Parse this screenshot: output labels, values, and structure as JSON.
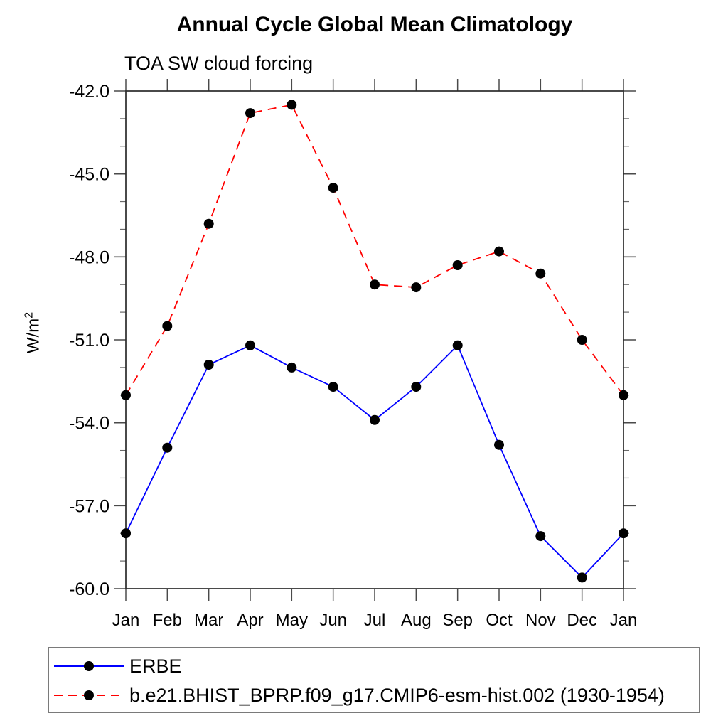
{
  "title": "Annual Cycle Global Mean Climatology",
  "subtitle": "TOA SW cloud forcing",
  "y_axis_label": {
    "base": "W/m",
    "superscript": "2"
  },
  "colors": {
    "background": "#ffffff",
    "axis": "#2b2b2b",
    "major_tick": "#4a4a4a",
    "minor_tick": "#6a6a6a",
    "text": "#000000",
    "marker": "#000000",
    "legend_border": "#7a7a7a"
  },
  "chart_data": {
    "type": "line",
    "title": "Annual Cycle Global Mean Climatology",
    "subtitle": "TOA SW cloud forcing",
    "xlabel": "",
    "ylabel": "W/m²",
    "categories": [
      "Jan",
      "Feb",
      "Mar",
      "Apr",
      "May",
      "Jun",
      "Jul",
      "Aug",
      "Sep",
      "Oct",
      "Nov",
      "Dec",
      "Jan"
    ],
    "ylim": [
      -60.0,
      -42.0
    ],
    "y_ticks_major": [
      -42.0,
      -45.0,
      -48.0,
      -51.0,
      -54.0,
      -57.0,
      -60.0
    ],
    "y_tick_labels": [
      "-42.0",
      "-45.0",
      "-48.0",
      "-51.0",
      "-54.0",
      "-57.0",
      "-60.0"
    ],
    "y_minor_tick_step": 1.0,
    "grid": false,
    "legend_position": "bottom-left",
    "series": [
      {
        "name": "ERBE",
        "color": "#0000ff",
        "line_style": "solid",
        "marker": "filled-circle",
        "marker_color": "#000000",
        "values": [
          -58.0,
          -54.9,
          -51.9,
          -51.2,
          -52.0,
          -52.7,
          -53.9,
          -52.7,
          -51.2,
          -54.8,
          -58.1,
          -59.6,
          -58.0
        ]
      },
      {
        "name": "b.e21.BHIST_BPRP.f09_g17.CMIP6-esm-hist.002 (1930-1954)",
        "color": "#ff0000",
        "line_style": "dashed",
        "marker": "filled-circle",
        "marker_color": "#000000",
        "values": [
          -53.0,
          -50.5,
          -46.8,
          -42.8,
          -42.5,
          -45.5,
          -49.0,
          -49.1,
          -48.3,
          -47.8,
          -48.6,
          -51.0,
          -53.0
        ]
      }
    ]
  }
}
